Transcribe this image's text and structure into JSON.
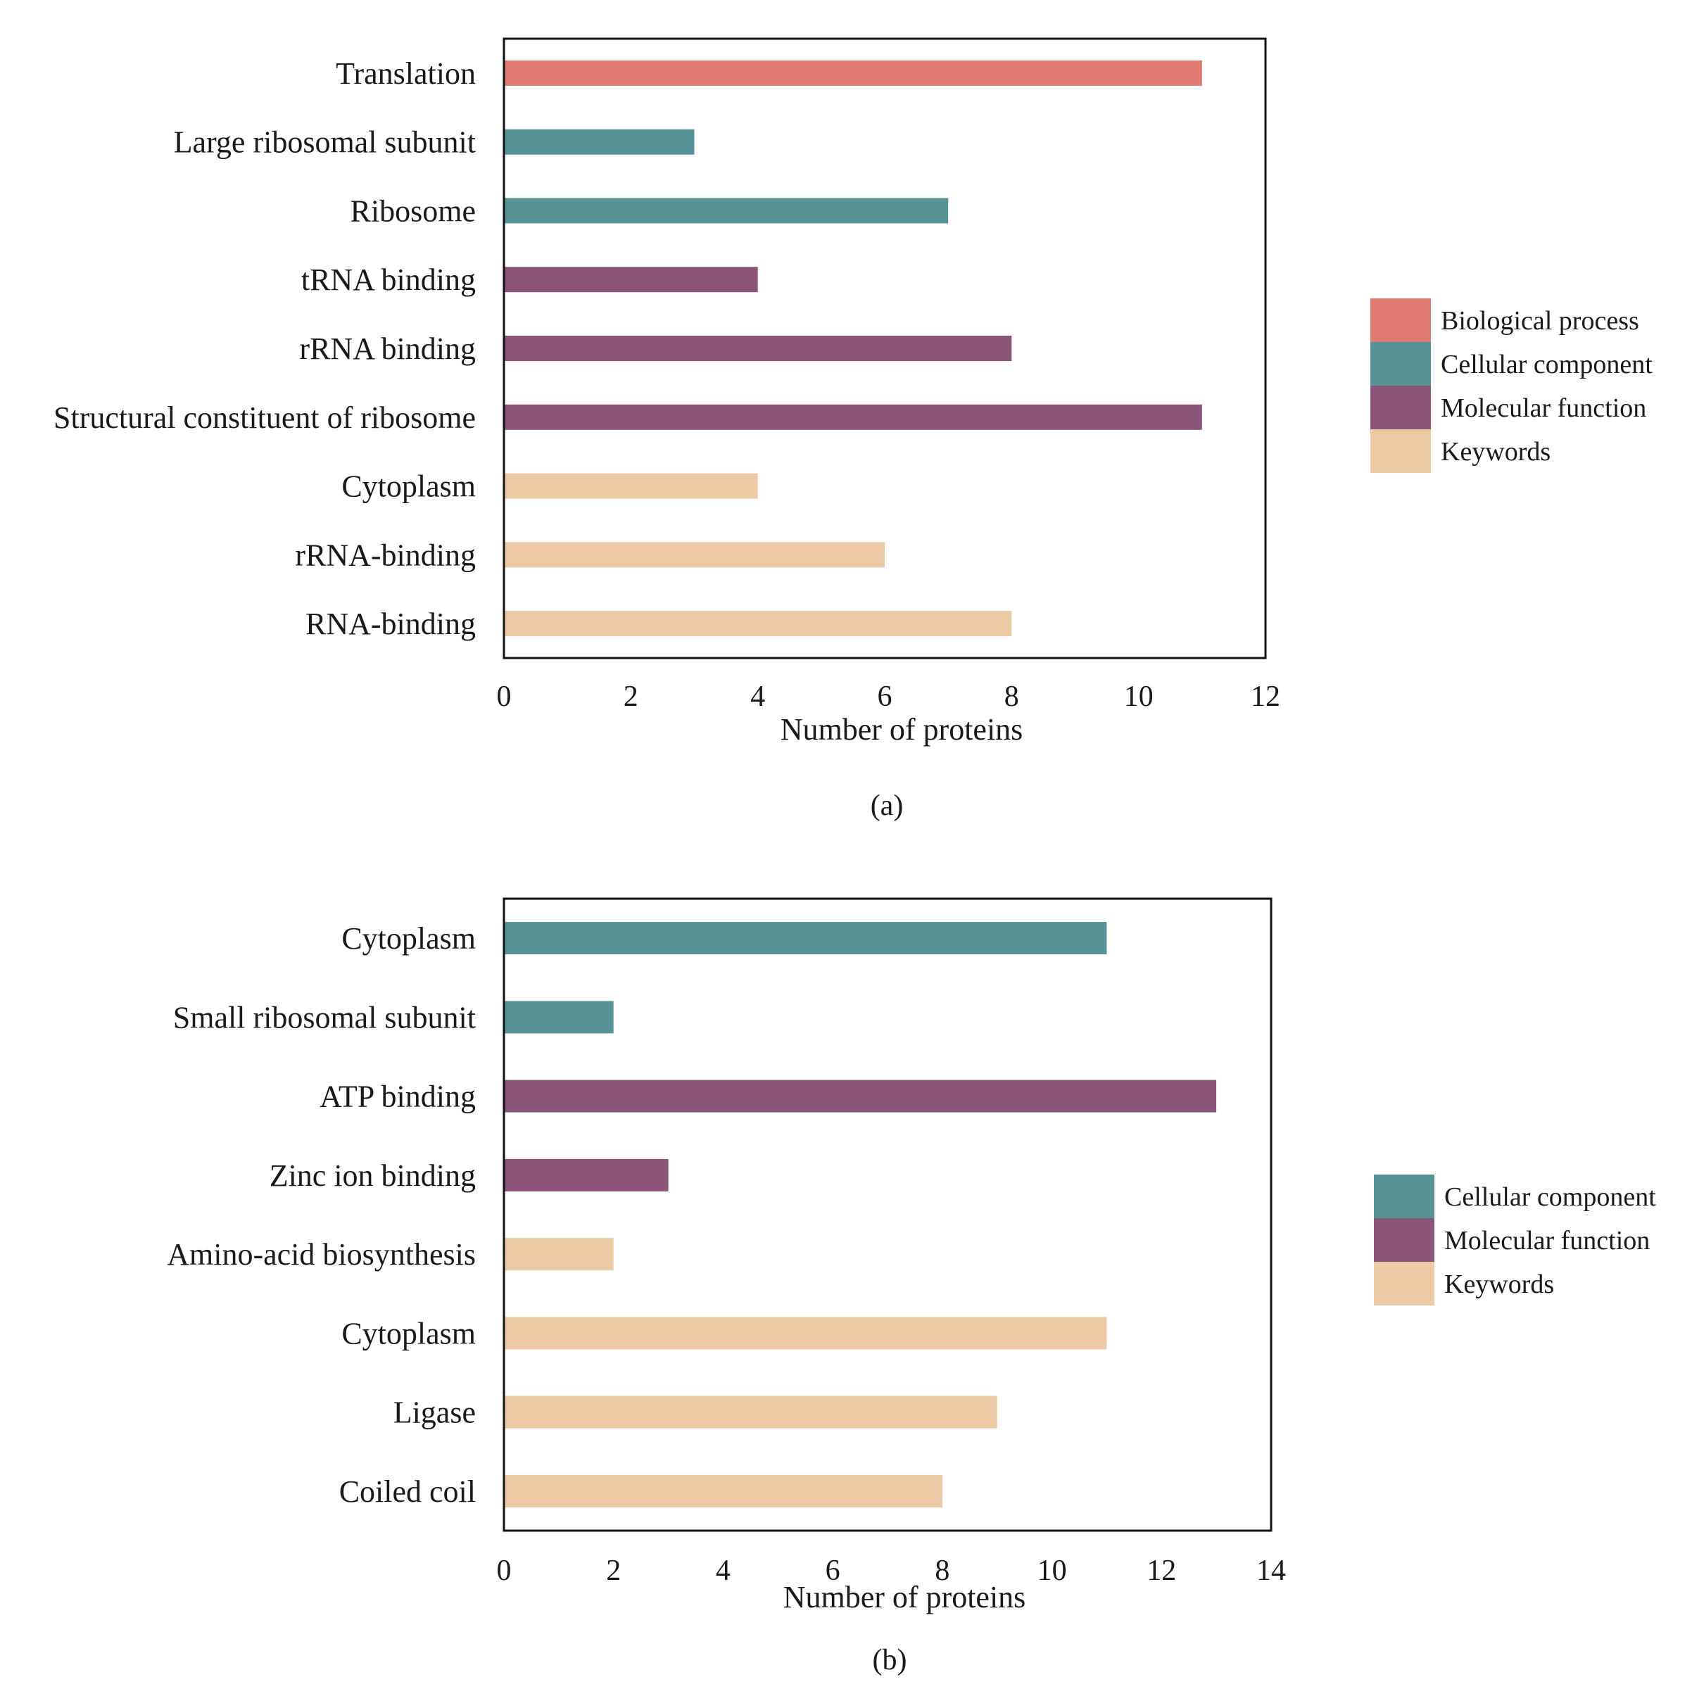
{
  "figure_captions": [
    "(a)",
    "(b)"
  ],
  "chart_data": [
    {
      "type": "bar",
      "orientation": "horizontal",
      "caption": "(a)",
      "xlabel": "Number of proteins",
      "xlim": [
        0,
        12
      ],
      "xticks": [
        0,
        2,
        4,
        6,
        8,
        10,
        12
      ],
      "categories": [
        "Translation",
        "Large ribosomal subunit",
        "Ribosome",
        "tRNA binding",
        "rRNA binding",
        "Structural constituent of ribosome",
        "Cytoplasm",
        "rRNA-binding",
        "RNA-binding"
      ],
      "values": [
        11,
        3,
        7,
        4,
        8,
        11,
        4,
        6,
        8
      ],
      "groups": [
        "Biological process",
        "Cellular component",
        "Cellular component",
        "Molecular function",
        "Molecular function",
        "Molecular function",
        "Keywords",
        "Keywords",
        "Keywords"
      ],
      "legend": [
        "Biological process",
        "Cellular component",
        "Molecular function",
        "Keywords"
      ],
      "legend_position": "right",
      "grid": false
    },
    {
      "type": "bar",
      "orientation": "horizontal",
      "caption": "(b)",
      "xlabel": "Number of proteins",
      "xlim": [
        0,
        14
      ],
      "xticks": [
        0,
        2,
        4,
        6,
        8,
        10,
        12,
        14
      ],
      "categories": [
        "Cytoplasm",
        "Small ribosomal subunit",
        "ATP binding",
        "Zinc ion binding",
        "Amino-acid biosynthesis",
        "Cytoplasm",
        "Ligase",
        "Coiled coil"
      ],
      "values": [
        11,
        2,
        13,
        3,
        2,
        11,
        9,
        8
      ],
      "groups": [
        "Cellular component",
        "Cellular component",
        "Molecular function",
        "Molecular function",
        "Keywords",
        "Keywords",
        "Keywords",
        "Keywords"
      ],
      "legend": [
        "Cellular component",
        "Molecular function",
        "Keywords"
      ],
      "legend_position": "right",
      "grid": false
    }
  ],
  "colors": {
    "Biological process": "#e07b72",
    "Cellular component": "#579296",
    "Molecular function": "#8b5479",
    "Keywords": "#ebcaa5"
  }
}
